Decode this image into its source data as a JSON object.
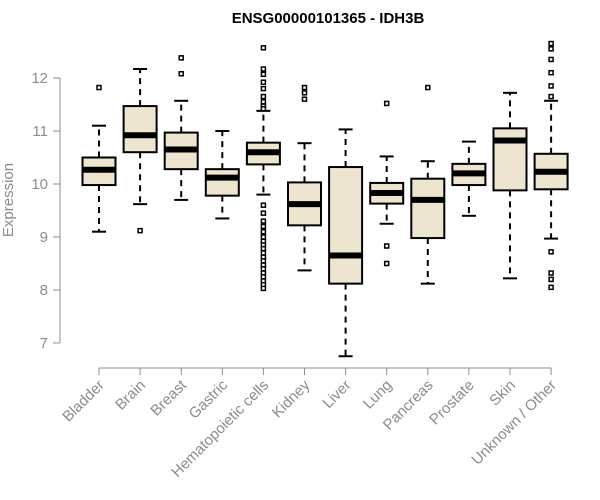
{
  "chart_data": {
    "type": "boxplot",
    "title": "ENSG00000101365 - IDH3B",
    "xlabel": "",
    "ylabel": "Expression",
    "ylim": [
      6.75,
      12.75
    ],
    "yticks": [
      7,
      8,
      9,
      10,
      11,
      12
    ],
    "box_fill": "#ede5cf",
    "box_stroke": "#000000",
    "axis_color": "#8c8c8c",
    "categories": [
      "Bladder",
      "Brain",
      "Breast",
      "Gastric",
      "Hematopoietic cells",
      "Kidney",
      "Liver",
      "Lung",
      "Pancreas",
      "Prostate",
      "Skin",
      "Unknown / Other"
    ],
    "boxes": [
      {
        "label": "Bladder",
        "whisker_low": 9.1,
        "q1": 9.98,
        "median": 10.27,
        "q3": 10.5,
        "whisker_high": 11.1,
        "outliers": [
          11.82
        ]
      },
      {
        "label": "Brain",
        "whisker_low": 9.62,
        "q1": 10.6,
        "median": 10.92,
        "q3": 11.47,
        "whisker_high": 12.17,
        "outliers": [
          9.12
        ]
      },
      {
        "label": "Breast",
        "whisker_low": 9.7,
        "q1": 10.28,
        "median": 10.65,
        "q3": 10.97,
        "whisker_high": 11.57,
        "outliers": [
          12.08,
          12.38
        ]
      },
      {
        "label": "Gastric",
        "whisker_low": 9.35,
        "q1": 9.78,
        "median": 10.12,
        "q3": 10.28,
        "whisker_high": 11.0,
        "outliers": []
      },
      {
        "label": "Hematopoietic cells",
        "whisker_low": 9.8,
        "q1": 10.37,
        "median": 10.6,
        "q3": 10.78,
        "whisker_high": 11.38,
        "outliers": [
          12.57,
          12.17,
          12.07,
          11.92,
          11.8,
          11.65,
          11.55,
          11.47,
          11.42,
          9.6,
          9.45,
          9.3,
          9.2,
          9.1,
          9.0,
          8.92,
          8.85,
          8.78,
          8.7,
          8.62,
          8.55,
          8.47,
          8.4,
          8.32,
          8.25,
          8.17,
          8.1,
          8.03
        ]
      },
      {
        "label": "Kidney",
        "whisker_low": 8.37,
        "q1": 9.22,
        "median": 9.62,
        "q3": 10.03,
        "whisker_high": 10.77,
        "outliers": [
          11.82,
          11.72,
          11.6
        ]
      },
      {
        "label": "Liver",
        "whisker_low": 6.75,
        "q1": 8.12,
        "median": 8.65,
        "q3": 10.32,
        "whisker_high": 11.03,
        "outliers": []
      },
      {
        "label": "Lung",
        "whisker_low": 9.25,
        "q1": 9.63,
        "median": 9.83,
        "q3": 10.02,
        "whisker_high": 10.52,
        "outliers": [
          11.52,
          8.83,
          8.5
        ]
      },
      {
        "label": "Pancreas",
        "whisker_low": 8.12,
        "q1": 8.98,
        "median": 9.7,
        "q3": 10.1,
        "whisker_high": 10.43,
        "outliers": [
          11.82
        ]
      },
      {
        "label": "Prostate",
        "whisker_low": 9.4,
        "q1": 9.98,
        "median": 10.2,
        "q3": 10.38,
        "whisker_high": 10.8,
        "outliers": []
      },
      {
        "label": "Skin",
        "whisker_low": 8.22,
        "q1": 9.88,
        "median": 10.82,
        "q3": 11.05,
        "whisker_high": 11.72,
        "outliers": []
      },
      {
        "label": "Unknown / Other",
        "whisker_low": 8.97,
        "q1": 9.9,
        "median": 10.23,
        "q3": 10.57,
        "whisker_high": 11.57,
        "outliers": [
          12.65,
          12.55,
          12.35,
          12.1,
          11.85,
          11.65,
          8.72,
          8.32,
          8.2,
          8.05
        ]
      }
    ]
  }
}
